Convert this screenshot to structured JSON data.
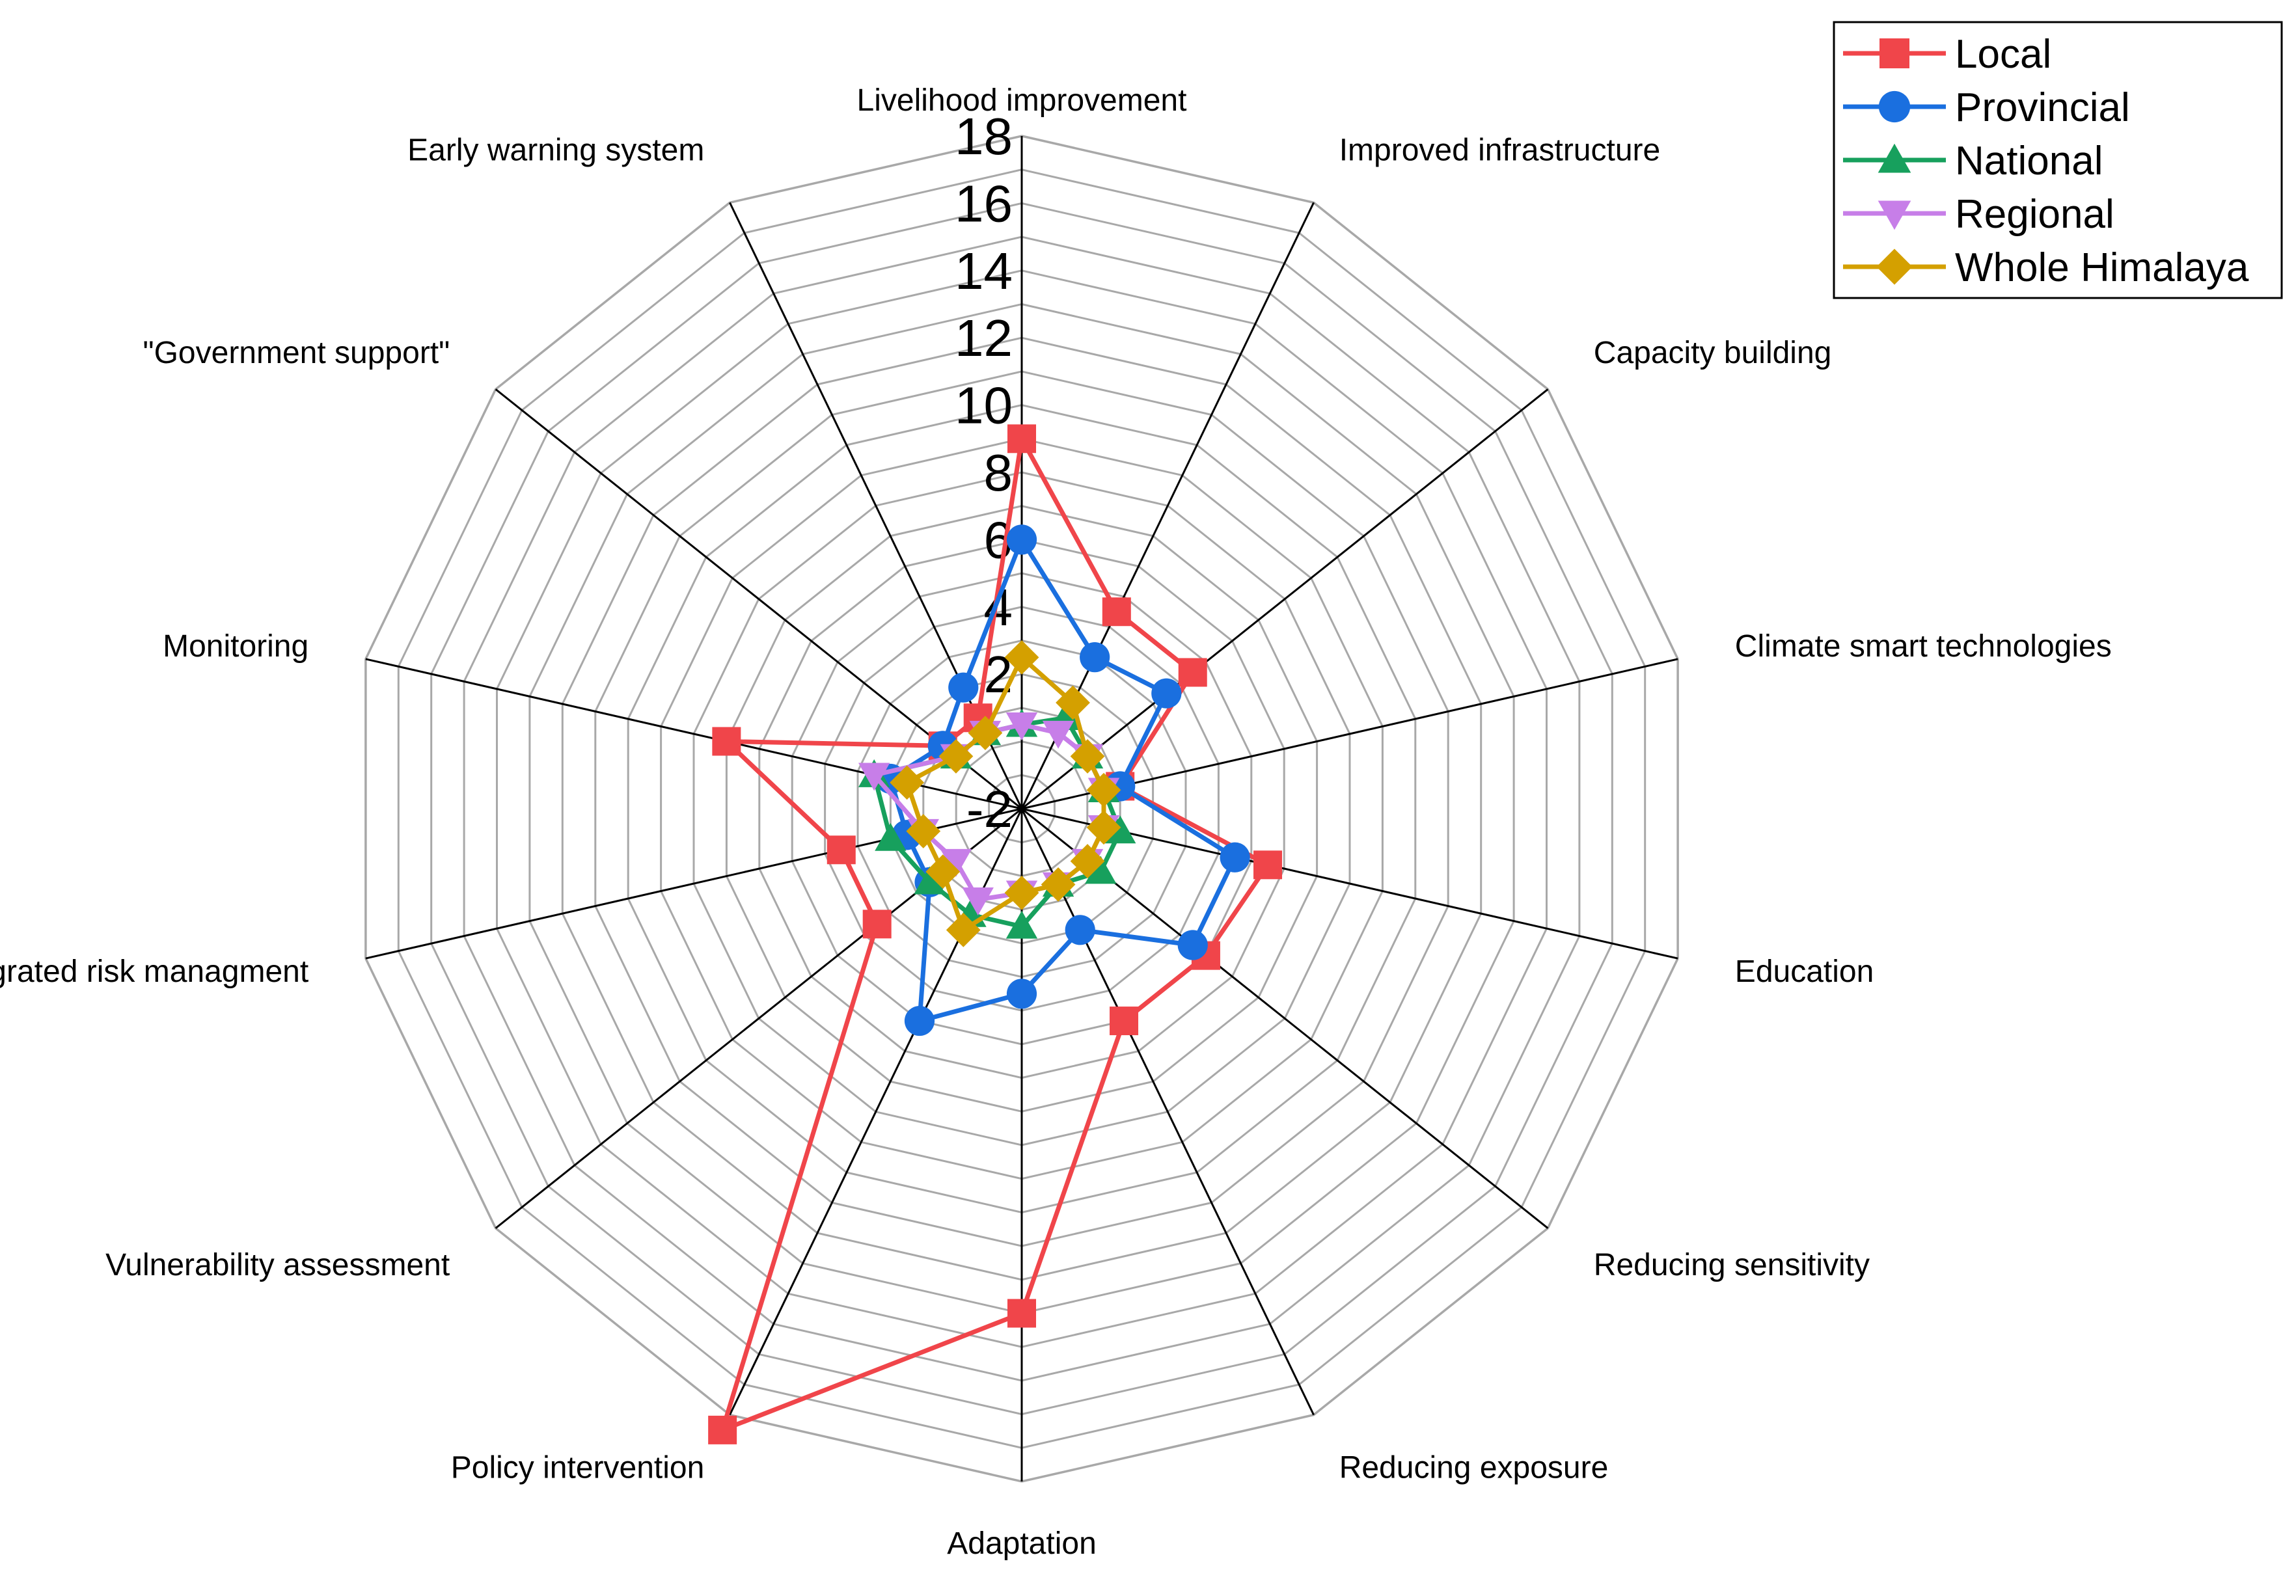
{
  "chart_data": {
    "type": "radar",
    "title": "",
    "categories": [
      "Livelihood improvement",
      "Improved infrastructure",
      "Capacity building",
      "Climate smart technologies",
      "Education",
      "Reducing sensitivity",
      "Reducing exposure",
      "Adaptation",
      "Policy intervention",
      "Vulnerability assessment",
      "Integrated risk managment",
      "Monitoring",
      "\"Government support\"",
      "Early warning system"
    ],
    "radial_range": [
      -2,
      18
    ],
    "ticks": [
      -2,
      2,
      4,
      6,
      8,
      10,
      12,
      14,
      16,
      18
    ],
    "tick_labels": [
      "-2",
      "2",
      "4",
      "6",
      "8",
      "10",
      "12",
      "14",
      "16",
      "18"
    ],
    "grid_step": 1,
    "legend_position": "top-right",
    "series": [
      {
        "name": "Local",
        "color": "#f0454a",
        "marker": "square",
        "values": [
          9,
          4.5,
          4.5,
          1,
          5.5,
          5,
          5,
          13,
          18.5,
          3.5,
          3.5,
          7,
          1,
          1
        ]
      },
      {
        "name": "Provincial",
        "color": "#1a6fdf",
        "marker": "circle",
        "values": [
          6,
          3,
          3.5,
          1,
          4.5,
          4.5,
          2,
          3.5,
          5,
          1.5,
          1.5,
          2,
          1,
          2
        ]
      },
      {
        "name": "National",
        "color": "#17a05d",
        "marker": "triangle-up",
        "values": [
          0.5,
          1,
          0.5,
          0.5,
          1,
          1,
          0.5,
          1.5,
          1.5,
          1.5,
          2,
          2.5,
          0.5,
          0.5
        ]
      },
      {
        "name": "Regional",
        "color": "#c77ee8",
        "marker": "triangle-down",
        "values": [
          0.5,
          0.5,
          0.5,
          0.5,
          0.5,
          0.5,
          0.5,
          0.5,
          1,
          0.5,
          1,
          2.5,
          0.5,
          0.5
        ]
      },
      {
        "name": "Whole Himalaya",
        "color": "#d4a000",
        "marker": "diamond",
        "values": [
          2.5,
          1.5,
          0.5,
          0.5,
          0.5,
          0.5,
          0.5,
          0.5,
          2,
          1,
          1,
          1.5,
          0.5,
          0.5
        ]
      }
    ]
  }
}
